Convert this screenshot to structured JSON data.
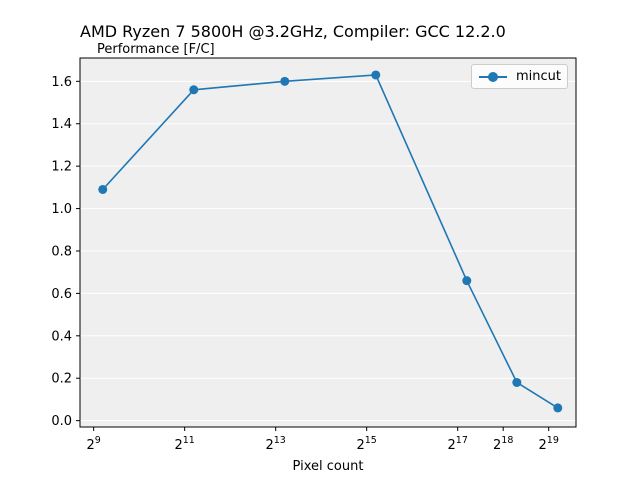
{
  "chart_data": {
    "type": "line",
    "title": "AMD Ryzen 7 5800H @3.2GHz, Compiler: GCC 12.2.0",
    "ylabel": "Performance [F/C]",
    "xlabel": "Pixel count",
    "x_scale": "log2",
    "xlim_log2": [
      8.7,
      19.6
    ],
    "ylim": [
      -0.03,
      1.71
    ],
    "x_ticks": [
      {
        "exp": 9,
        "label": "9"
      },
      {
        "exp": 11,
        "label": "11"
      },
      {
        "exp": 13,
        "label": "13"
      },
      {
        "exp": 15,
        "label": "15"
      },
      {
        "exp": 17,
        "label": "17"
      },
      {
        "exp": 18,
        "label": "18"
      },
      {
        "exp": 19,
        "label": "19"
      }
    ],
    "x_tick_base": "2",
    "y_ticks": [
      "0.0",
      "0.2",
      "0.4",
      "0.6",
      "0.8",
      "1.0",
      "1.2",
      "1.4",
      "1.6"
    ],
    "grid": "y",
    "background": "#efefef",
    "legend_position": "top-right",
    "series": [
      {
        "name": "mincut",
        "color": "#1f77b4",
        "marker": "circle",
        "x_log2": [
          9.2,
          11.2,
          13.2,
          15.2,
          17.2,
          18.3,
          19.2
        ],
        "values": [
          1.09,
          1.56,
          1.6,
          1.63,
          0.66,
          0.18,
          0.06
        ]
      }
    ]
  }
}
